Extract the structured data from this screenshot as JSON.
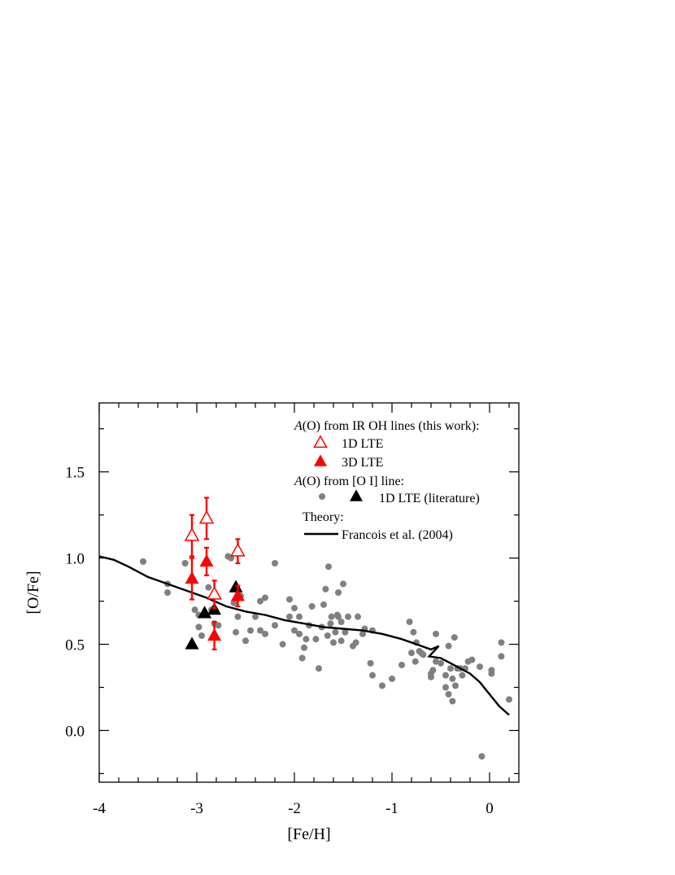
{
  "chart_data": {
    "type": "scatter",
    "xlabel": "[Fe/H]",
    "ylabel": "[O/Fe]",
    "xlim": [
      -4,
      0.3
    ],
    "ylim": [
      -0.3,
      1.9
    ],
    "x_ticks": [
      "-4",
      "-3",
      "-2",
      "-1",
      "0"
    ],
    "x_tick_values": [
      -4,
      -3,
      -2,
      -1,
      0
    ],
    "y_ticks": [
      "0.0",
      "0.5",
      "1.0",
      "1.5"
    ],
    "y_tick_values": [
      0.0,
      0.5,
      1.0,
      1.5
    ],
    "grid": false,
    "legend_position": "top-right",
    "colors": {
      "red": "#ff0000",
      "black": "#000000",
      "gray": "#808080"
    },
    "legend": {
      "heading1_italic": "A",
      "heading1_rest": "(O) from IR OH lines (this work):",
      "item_1d": "1D LTE",
      "item_3d": "3D LTE",
      "heading2_italic": "A",
      "heading2_rest": "(O) from [O I] line:",
      "item_lit": "1D LTE (literature)",
      "heading3": "Theory:",
      "item_theory": "Francois et al. (2004)"
    },
    "series": [
      {
        "name": "1D LTE",
        "marker": "open-triangle",
        "color": "#ff0000",
        "points": [
          {
            "x": -3.05,
            "y": 1.13,
            "err": 0.12
          },
          {
            "x": -2.9,
            "y": 1.23,
            "err": 0.12
          },
          {
            "x": -2.82,
            "y": 0.79,
            "err": 0.08
          },
          {
            "x": -2.58,
            "y": 1.04,
            "err": 0.07
          }
        ]
      },
      {
        "name": "3D LTE",
        "marker": "filled-triangle",
        "color": "#ff0000",
        "points": [
          {
            "x": -3.05,
            "y": 0.88,
            "err": 0.12
          },
          {
            "x": -2.9,
            "y": 0.98,
            "err": 0.08
          },
          {
            "x": -2.82,
            "y": 0.55,
            "err": 0.08
          },
          {
            "x": -2.58,
            "y": 0.78,
            "err": 0.06
          }
        ]
      },
      {
        "name": "1D LTE (literature)",
        "marker": "filled-triangle",
        "color": "#000000",
        "points": [
          {
            "x": -3.05,
            "y": 0.5
          },
          {
            "x": -2.92,
            "y": 0.68
          },
          {
            "x": -2.82,
            "y": 0.7
          },
          {
            "x": -2.6,
            "y": 0.83
          }
        ]
      },
      {
        "name": "[O I] literature dots",
        "marker": "dot",
        "color": "#808080",
        "points": [
          [
            -3.55,
            0.98
          ],
          [
            -3.3,
            0.85
          ],
          [
            -3.3,
            0.8
          ],
          [
            -3.12,
            0.97
          ],
          [
            -3.02,
            0.7
          ],
          [
            -2.98,
            0.67
          ],
          [
            -2.98,
            0.6
          ],
          [
            -2.95,
            0.55
          ],
          [
            -2.88,
            0.83
          ],
          [
            -2.85,
            0.7
          ],
          [
            -2.82,
            0.62
          ],
          [
            -2.78,
            0.61
          ],
          [
            -2.68,
            1.01
          ],
          [
            -2.65,
            1.0
          ],
          [
            -2.62,
            0.74
          ],
          [
            -2.6,
            0.57
          ],
          [
            -2.58,
            0.66
          ],
          [
            -2.55,
            0.78
          ],
          [
            -2.5,
            0.52
          ],
          [
            -2.45,
            0.58
          ],
          [
            -2.4,
            0.66
          ],
          [
            -2.35,
            0.58
          ],
          [
            -2.35,
            0.75
          ],
          [
            -2.3,
            0.56
          ],
          [
            -2.3,
            0.77
          ],
          [
            -2.2,
            0.97
          ],
          [
            -2.2,
            0.61
          ],
          [
            -2.12,
            0.5
          ],
          [
            -2.05,
            0.66
          ],
          [
            -2.05,
            0.76
          ],
          [
            -2.0,
            0.71
          ],
          [
            -2.0,
            0.58
          ],
          [
            -1.95,
            0.56
          ],
          [
            -1.95,
            0.66
          ],
          [
            -1.92,
            0.42
          ],
          [
            -1.9,
            0.48
          ],
          [
            -1.88,
            0.53
          ],
          [
            -1.85,
            0.61
          ],
          [
            -1.82,
            0.72
          ],
          [
            -1.78,
            0.53
          ],
          [
            -1.75,
            0.36
          ],
          [
            -1.72,
            0.6
          ],
          [
            -1.7,
            0.73
          ],
          [
            -1.68,
            0.82
          ],
          [
            -1.66,
            0.55
          ],
          [
            -1.65,
            0.95
          ],
          [
            -1.63,
            0.62
          ],
          [
            -1.62,
            0.66
          ],
          [
            -1.6,
            0.51
          ],
          [
            -1.58,
            0.57
          ],
          [
            -1.56,
            0.67
          ],
          [
            -1.55,
            0.8
          ],
          [
            -1.55,
            0.66
          ],
          [
            -1.52,
            0.52
          ],
          [
            -1.52,
            0.63
          ],
          [
            -1.5,
            0.85
          ],
          [
            -1.48,
            0.57
          ],
          [
            -1.45,
            0.66
          ],
          [
            -1.4,
            0.49
          ],
          [
            -1.37,
            0.51
          ],
          [
            -1.35,
            0.66
          ],
          [
            -1.3,
            0.56
          ],
          [
            -1.28,
            0.59
          ],
          [
            -1.2,
            0.58
          ],
          [
            -1.22,
            0.39
          ],
          [
            -1.2,
            0.32
          ],
          [
            -1.1,
            0.26
          ],
          [
            -1.0,
            0.3
          ],
          [
            -0.9,
            0.38
          ],
          [
            -0.82,
            0.63
          ],
          [
            -0.8,
            0.45
          ],
          [
            -0.78,
            0.57
          ],
          [
            -0.76,
            0.4
          ],
          [
            -0.75,
            0.51
          ],
          [
            -0.72,
            0.46
          ],
          [
            -0.7,
            0.45
          ],
          [
            -0.68,
            0.44
          ],
          [
            -0.6,
            0.33
          ],
          [
            -0.6,
            0.31
          ],
          [
            -0.58,
            0.35
          ],
          [
            -0.55,
            0.56
          ],
          [
            -0.55,
            0.4
          ],
          [
            -0.5,
            0.39
          ],
          [
            -0.45,
            0.32
          ],
          [
            -0.45,
            0.25
          ],
          [
            -0.42,
            0.21
          ],
          [
            -0.42,
            0.49
          ],
          [
            -0.4,
            0.36
          ],
          [
            -0.38,
            0.3
          ],
          [
            -0.38,
            0.17
          ],
          [
            -0.36,
            0.54
          ],
          [
            -0.35,
            0.26
          ],
          [
            -0.33,
            0.36
          ],
          [
            -0.3,
            0.36
          ],
          [
            -0.28,
            0.32
          ],
          [
            -0.25,
            0.36
          ],
          [
            -0.22,
            0.4
          ],
          [
            -0.18,
            0.41
          ],
          [
            -0.1,
            0.37
          ],
          [
            -0.08,
            -0.15
          ],
          [
            0.02,
            0.35
          ],
          [
            0.02,
            0.33
          ],
          [
            0.12,
            0.51
          ],
          [
            0.12,
            0.43
          ],
          [
            0.2,
            0.18
          ]
        ]
      }
    ],
    "theory_curve": {
      "name": "Francois et al. (2004)",
      "color": "#000000",
      "points": [
        [
          -4.0,
          1.01
        ],
        [
          -3.85,
          0.99
        ],
        [
          -3.7,
          0.95
        ],
        [
          -3.5,
          0.89
        ],
        [
          -3.3,
          0.85
        ],
        [
          -3.1,
          0.81
        ],
        [
          -2.9,
          0.77
        ],
        [
          -2.7,
          0.72
        ],
        [
          -2.5,
          0.69
        ],
        [
          -2.3,
          0.67
        ],
        [
          -2.1,
          0.64
        ],
        [
          -1.9,
          0.62
        ],
        [
          -1.7,
          0.6
        ],
        [
          -1.5,
          0.59
        ],
        [
          -1.3,
          0.58
        ],
        [
          -1.1,
          0.56
        ],
        [
          -0.9,
          0.53
        ],
        [
          -0.75,
          0.5
        ],
        [
          -0.6,
          0.47
        ],
        [
          -0.52,
          0.49
        ],
        [
          -0.62,
          0.43
        ],
        [
          -0.5,
          0.42
        ],
        [
          -0.4,
          0.39
        ],
        [
          -0.3,
          0.36
        ],
        [
          -0.2,
          0.33
        ],
        [
          -0.1,
          0.28
        ],
        [
          0.0,
          0.21
        ],
        [
          0.1,
          0.14
        ],
        [
          0.2,
          0.09
        ]
      ]
    }
  }
}
